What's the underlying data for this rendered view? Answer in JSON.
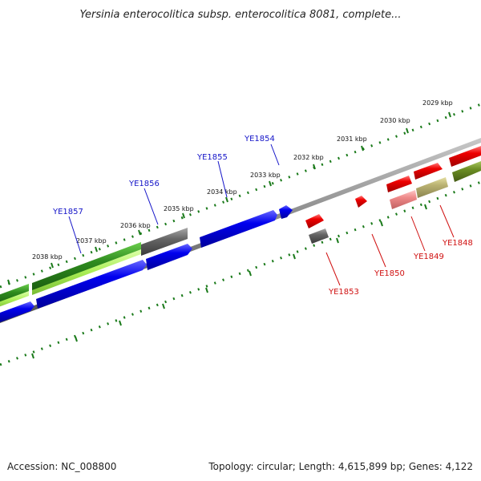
{
  "title": "Yersinia enterocolitica subsp. enterocolitica 8081, complete...",
  "footer": {
    "accession": "Accession: NC_008800",
    "summary": "Topology: circular; Length: 4,615,899 bp; Genes: 4,122"
  },
  "ticks": [
    "2029 kbp",
    "2030 kbp",
    "2031 kbp",
    "2032 kbp",
    "2033 kbp",
    "2034 kbp",
    "2035 kbp",
    "2036 kbp",
    "2037 kbp",
    "2038 kbp"
  ],
  "genes_forward": [
    "YE1854",
    "YE1855",
    "YE1856",
    "YE1857"
  ],
  "genes_reverse": [
    "YE1848",
    "YE1849",
    "YE1850",
    "YE1853"
  ],
  "colors": {
    "forward_label": "#1414c8",
    "reverse_label": "#d01010",
    "tick": "#1a7a1a",
    "backbone": "#808080",
    "cds_blue": "#0000ee",
    "cds_red": "#ee0000",
    "cds_pink": "#ee8888",
    "cds_gray": "#666666",
    "cds_khaki": "#b8b070",
    "cds_green": "#2e8b1e",
    "cds_lightgreen": "#aaee55",
    "cds_olive": "#6b8e23"
  }
}
